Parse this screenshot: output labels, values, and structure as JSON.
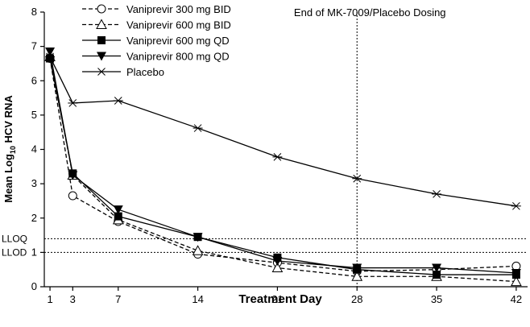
{
  "chart_data": {
    "type": "line",
    "title": "",
    "xlabel": "Treatment Day",
    "ylabel": {
      "prefix": "Mean Log",
      "sub": "10",
      "suffix": " HCV RNA"
    },
    "xticks": [
      1,
      3,
      7,
      14,
      21,
      28,
      35,
      42
    ],
    "yticks": [
      0,
      1,
      2,
      3,
      4,
      5,
      6,
      7,
      8
    ],
    "xlim": [
      0.5,
      43
    ],
    "ylim": [
      0,
      8
    ],
    "grid": false,
    "legend_position": "top-left",
    "reference_lines": [
      {
        "axis": "y",
        "value": 1.4,
        "label": "LLOQ",
        "style": "dotted"
      },
      {
        "axis": "y",
        "value": 1.0,
        "label": "LLOD",
        "style": "dotted"
      },
      {
        "axis": "x",
        "value": 28,
        "label": "End of MK-7009/Placebo Dosing",
        "style": "dotted"
      }
    ],
    "series": [
      {
        "name": "Vaniprevir 300 mg BID",
        "marker": "open-circle",
        "line": "dashed",
        "x": [
          1,
          3,
          7,
          14,
          21,
          28,
          35,
          42
        ],
        "y": [
          6.65,
          2.65,
          1.9,
          0.95,
          0.7,
          0.45,
          0.5,
          0.6
        ]
      },
      {
        "name": "Vaniprevir 600 mg BID",
        "marker": "open-triangle",
        "line": "dashed",
        "x": [
          1,
          3,
          7,
          14,
          21,
          28,
          35,
          42
        ],
        "y": [
          6.7,
          3.25,
          1.95,
          1.05,
          0.55,
          0.3,
          0.3,
          0.15
        ]
      },
      {
        "name": "Vaniprevir 600 mg QD",
        "marker": "filled-square",
        "line": "solid",
        "x": [
          1,
          3,
          7,
          14,
          21,
          28,
          35,
          42
        ],
        "y": [
          6.65,
          3.3,
          2.05,
          1.45,
          0.85,
          0.5,
          0.35,
          0.35
        ]
      },
      {
        "name": "Vaniprevir 800 mg QD",
        "marker": "filled-down-triangle",
        "line": "solid",
        "x": [
          1,
          3,
          7,
          14,
          21,
          28,
          35,
          42
        ],
        "y": [
          6.85,
          3.25,
          2.25,
          1.45,
          0.75,
          0.55,
          0.55,
          0.4
        ]
      },
      {
        "name": "Placebo",
        "marker": "asterisk",
        "line": "solid",
        "x": [
          1,
          3,
          7,
          14,
          21,
          28,
          35,
          42
        ],
        "y": [
          6.7,
          5.35,
          5.42,
          4.62,
          3.78,
          3.15,
          2.7,
          2.35
        ]
      }
    ]
  }
}
